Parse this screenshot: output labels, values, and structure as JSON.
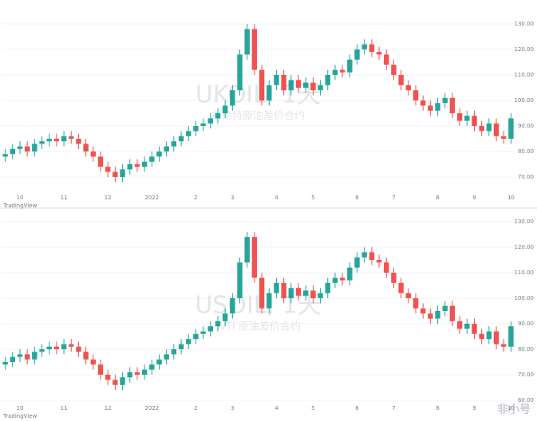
{
  "chart_data": [
    {
      "type": "candlestick",
      "watermark": "UKOIL, 1天",
      "watermark_subtitle": "布伦特原油差价合约",
      "source": "TradingView",
      "up_color": "#26a69a",
      "down_color": "#ef5350",
      "grid": true,
      "categories": [
        null,
        null,
        "10",
        null,
        null,
        null,
        null,
        null,
        "11",
        null,
        null,
        null,
        null,
        null,
        "12",
        null,
        null,
        null,
        null,
        null,
        "2022",
        null,
        null,
        null,
        null,
        null,
        "2",
        null,
        null,
        null,
        null,
        "3",
        null,
        null,
        null,
        null,
        null,
        "4",
        null,
        null,
        null,
        null,
        "5",
        null,
        null,
        null,
        null,
        null,
        "6",
        null,
        null,
        null,
        null,
        "7",
        null,
        null,
        null,
        null,
        null,
        "8",
        null,
        null,
        null,
        null,
        "9",
        null,
        null,
        null,
        null,
        "10"
      ],
      "open": [
        78,
        79,
        81,
        82,
        80,
        83,
        84,
        85,
        84,
        86,
        85,
        83,
        80,
        78,
        74,
        72,
        70,
        73,
        75,
        74,
        76,
        78,
        80,
        82,
        84,
        86,
        88,
        90,
        91,
        93,
        95,
        98,
        104,
        118,
        128,
        112,
        100,
        106,
        110,
        104,
        108,
        105,
        107,
        104,
        106,
        110,
        112,
        111,
        116,
        120,
        122,
        119,
        118,
        114,
        110,
        106,
        104,
        100,
        98,
        96,
        99,
        101,
        95,
        92,
        94,
        90,
        88,
        91,
        86,
        85
      ],
      "high": [
        81,
        83,
        84,
        84,
        85,
        86,
        87,
        87,
        88,
        88,
        87,
        85,
        82,
        80,
        76,
        74,
        75,
        77,
        77,
        78,
        80,
        82,
        84,
        86,
        88,
        90,
        92,
        93,
        95,
        97,
        100,
        106,
        120,
        130,
        130,
        114,
        108,
        112,
        112,
        110,
        110,
        109,
        109,
        108,
        112,
        114,
        114,
        118,
        122,
        124,
        124,
        121,
        120,
        116,
        112,
        108,
        106,
        102,
        100,
        101,
        103,
        103,
        97,
        96,
        96,
        92,
        93,
        93,
        88,
        95
      ],
      "low": [
        76,
        77,
        79,
        78,
        78,
        81,
        82,
        82,
        82,
        83,
        81,
        78,
        76,
        72,
        70,
        68,
        68,
        71,
        72,
        72,
        74,
        76,
        78,
        80,
        82,
        84,
        86,
        88,
        89,
        91,
        93,
        96,
        102,
        116,
        110,
        98,
        98,
        104,
        102,
        102,
        103,
        103,
        102,
        102,
        104,
        108,
        109,
        109,
        114,
        118,
        117,
        116,
        112,
        108,
        104,
        102,
        98,
        96,
        94,
        94,
        97,
        93,
        90,
        90,
        88,
        86,
        86,
        84,
        83,
        83
      ],
      "close": [
        79,
        81,
        82,
        80,
        83,
        84,
        85,
        84,
        86,
        85,
        83,
        80,
        78,
        74,
        72,
        70,
        73,
        75,
        74,
        76,
        78,
        80,
        82,
        84,
        86,
        88,
        90,
        91,
        93,
        95,
        98,
        104,
        118,
        128,
        112,
        100,
        106,
        110,
        104,
        108,
        105,
        107,
        104,
        106,
        110,
        112,
        111,
        116,
        120,
        122,
        119,
        118,
        114,
        110,
        106,
        104,
        100,
        98,
        96,
        99,
        101,
        95,
        92,
        94,
        90,
        88,
        91,
        86,
        85,
        93
      ],
      "ylim": [
        65,
        135
      ],
      "yticks": [
        {
          "value": 70,
          "label": "70.00"
        },
        {
          "value": 80,
          "label": "80.00"
        },
        {
          "value": 90,
          "label": "90.00"
        },
        {
          "value": 100,
          "label": "100.00"
        },
        {
          "value": 110,
          "label": "110.00"
        },
        {
          "value": 120,
          "label": "120.00"
        },
        {
          "value": 130,
          "label": "130.00"
        }
      ]
    },
    {
      "type": "candlestick",
      "watermark": "USOIL, 1天",
      "watermark_subtitle": "WTI 原油差价合约",
      "source": "TradingView",
      "up_color": "#26a69a",
      "down_color": "#ef5350",
      "grid": true,
      "categories": [
        null,
        null,
        "10",
        null,
        null,
        null,
        null,
        null,
        "11",
        null,
        null,
        null,
        null,
        null,
        "12",
        null,
        null,
        null,
        null,
        null,
        "2022",
        null,
        null,
        null,
        null,
        null,
        "2",
        null,
        null,
        null,
        null,
        "3",
        null,
        null,
        null,
        null,
        null,
        "4",
        null,
        null,
        null,
        null,
        "5",
        null,
        null,
        null,
        null,
        null,
        "6",
        null,
        null,
        null,
        null,
        "7",
        null,
        null,
        null,
        null,
        null,
        "8",
        null,
        null,
        null,
        null,
        "9",
        null,
        null,
        null,
        null,
        "10"
      ],
      "open": [
        74,
        75,
        77,
        78,
        76,
        79,
        80,
        81,
        80,
        82,
        81,
        79,
        76,
        74,
        70,
        68,
        66,
        69,
        71,
        70,
        72,
        74,
        76,
        78,
        80,
        82,
        84,
        86,
        87,
        89,
        91,
        94,
        100,
        114,
        124,
        108,
        96,
        102,
        106,
        100,
        104,
        101,
        103,
        100,
        102,
        106,
        108,
        107,
        112,
        116,
        118,
        115,
        114,
        110,
        106,
        102,
        100,
        96,
        94,
        92,
        95,
        97,
        91,
        88,
        90,
        86,
        84,
        87,
        82,
        81
      ],
      "high": [
        77,
        79,
        80,
        80,
        81,
        82,
        83,
        83,
        84,
        84,
        83,
        81,
        78,
        76,
        72,
        70,
        71,
        73,
        73,
        74,
        76,
        78,
        80,
        82,
        84,
        86,
        88,
        89,
        91,
        93,
        96,
        102,
        116,
        126,
        126,
        110,
        104,
        108,
        108,
        106,
        106,
        105,
        105,
        104,
        108,
        110,
        110,
        114,
        118,
        120,
        120,
        117,
        116,
        112,
        108,
        104,
        102,
        98,
        96,
        97,
        99,
        99,
        93,
        92,
        92,
        88,
        89,
        89,
        84,
        91
      ],
      "low": [
        72,
        73,
        75,
        74,
        74,
        77,
        78,
        78,
        78,
        79,
        77,
        74,
        72,
        68,
        66,
        64,
        64,
        67,
        68,
        68,
        70,
        72,
        74,
        76,
        78,
        80,
        82,
        84,
        85,
        87,
        89,
        92,
        98,
        112,
        106,
        94,
        94,
        100,
        98,
        98,
        99,
        99,
        98,
        98,
        100,
        104,
        105,
        105,
        110,
        114,
        113,
        112,
        108,
        104,
        100,
        98,
        94,
        92,
        90,
        90,
        93,
        89,
        86,
        86,
        84,
        82,
        82,
        80,
        79,
        79
      ],
      "close": [
        75,
        77,
        78,
        76,
        79,
        80,
        81,
        80,
        82,
        81,
        79,
        76,
        74,
        70,
        68,
        66,
        69,
        71,
        70,
        72,
        74,
        76,
        78,
        80,
        82,
        84,
        86,
        87,
        89,
        91,
        94,
        100,
        114,
        124,
        108,
        96,
        102,
        106,
        100,
        104,
        101,
        103,
        100,
        102,
        106,
        108,
        107,
        112,
        116,
        118,
        115,
        114,
        110,
        106,
        102,
        100,
        96,
        94,
        92,
        95,
        97,
        91,
        88,
        90,
        86,
        84,
        87,
        82,
        81,
        89
      ],
      "ylim": [
        60,
        130
      ],
      "yticks": [
        {
          "value": 60,
          "label": "60.00"
        },
        {
          "value": 70,
          "label": "70.00"
        },
        {
          "value": 80,
          "label": "80.00"
        },
        {
          "value": 90,
          "label": "90.00"
        },
        {
          "value": 100,
          "label": "100.00"
        },
        {
          "value": 110,
          "label": "110.00"
        },
        {
          "value": 120,
          "label": "120.00"
        },
        {
          "value": 130,
          "label": "130.00"
        }
      ]
    }
  ],
  "footer": {
    "brand": "非小号"
  }
}
